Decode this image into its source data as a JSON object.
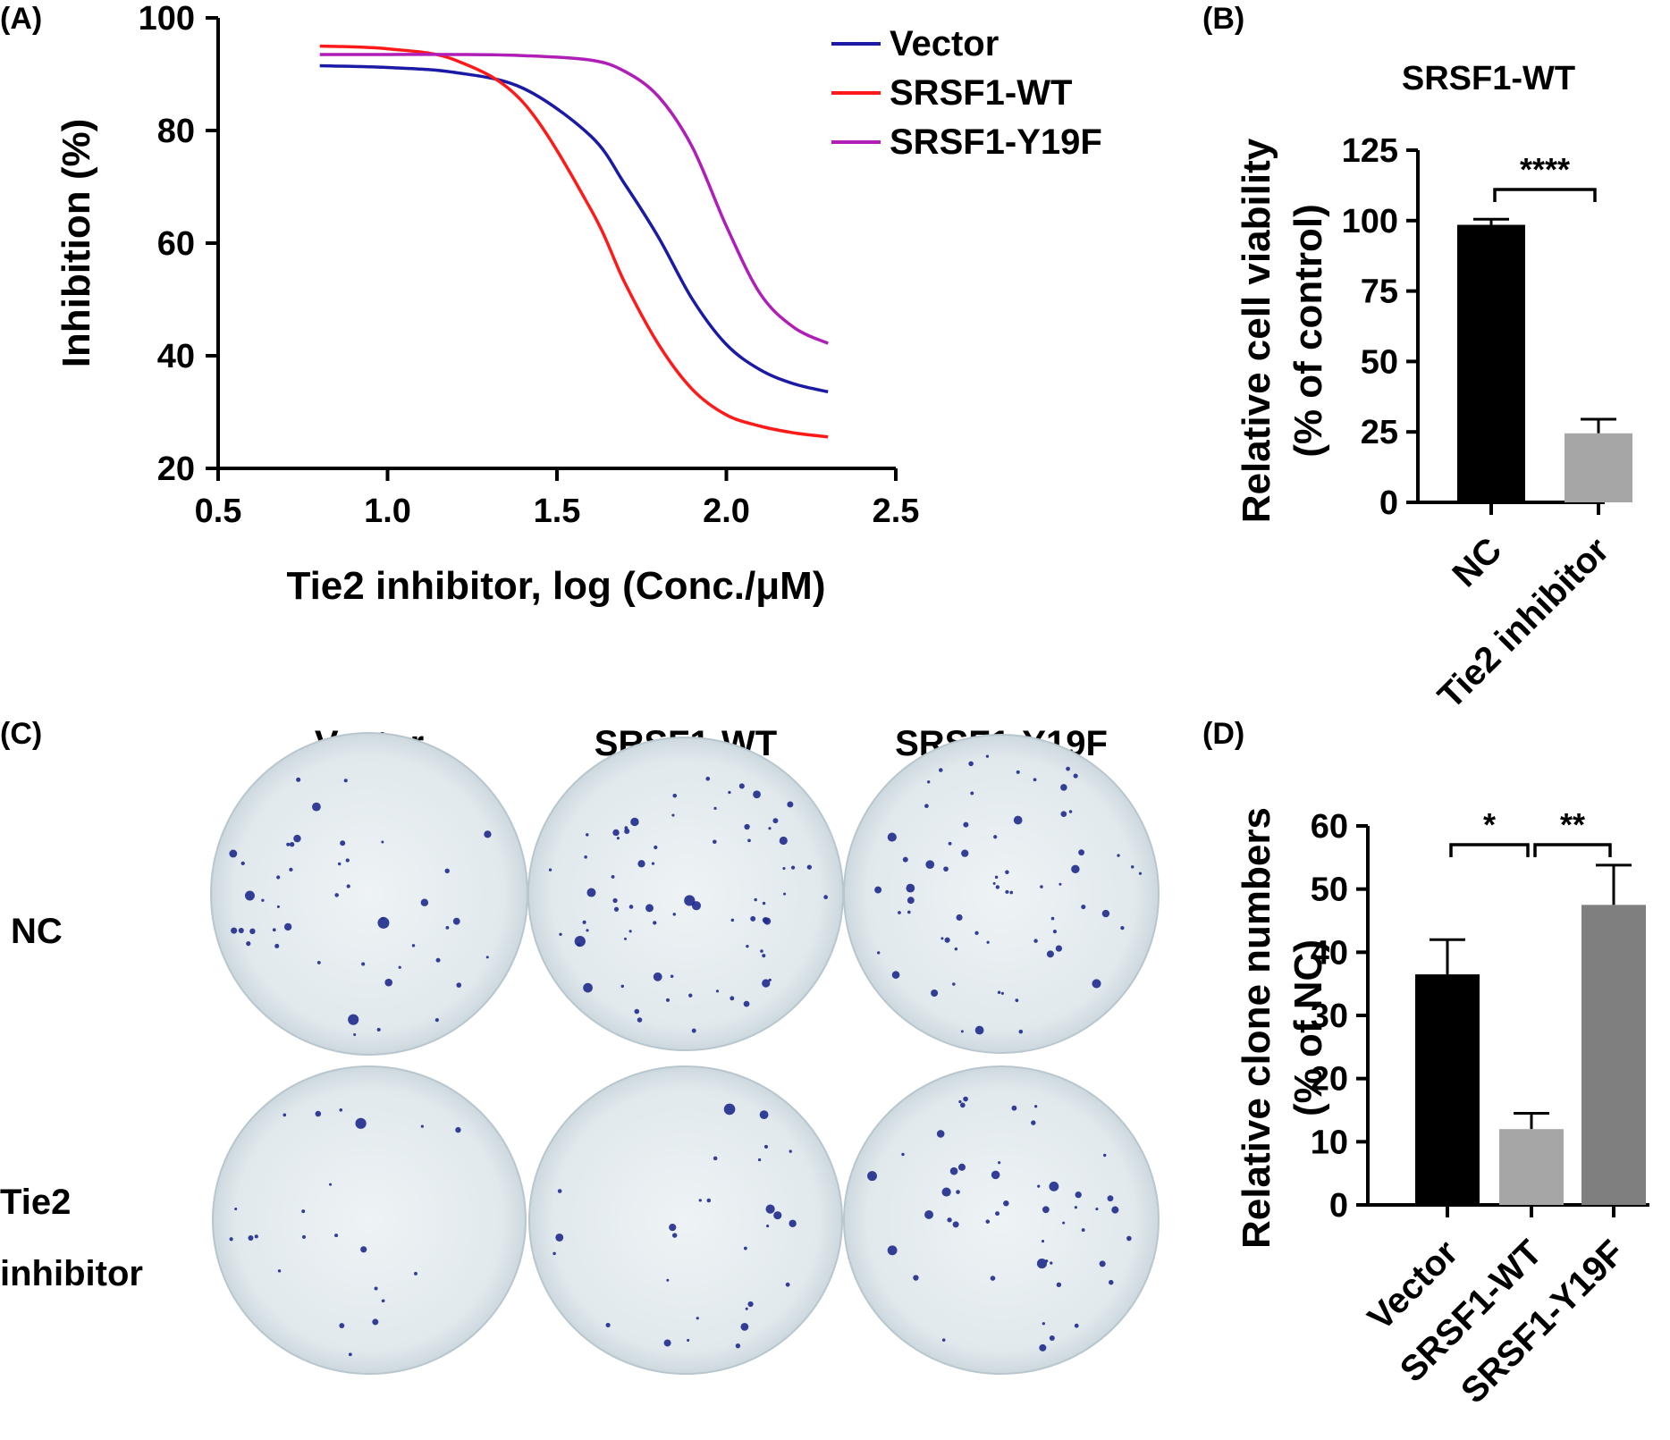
{
  "panels": {
    "a_label": "(A)",
    "b_label": "(B)",
    "c_label": "(C)",
    "d_label": "(D)"
  },
  "chart_data": [
    {
      "type": "line",
      "panel": "(A)",
      "xlabel": "Tie2 inhibitor, log (Conc./μM)",
      "ylabel": "Inhibition (%)",
      "xlim": [
        0.5,
        2.5
      ],
      "ylim": [
        20,
        100
      ],
      "xticks": [
        "0.5",
        "1.0",
        "1.5",
        "2.0",
        "2.5"
      ],
      "yticks": [
        "20",
        "40",
        "60",
        "80",
        "100"
      ],
      "legend_position": "top-right",
      "x": [
        0.8,
        1.0,
        1.2,
        1.4,
        1.6,
        1.7,
        1.8,
        1.9,
        2.0,
        2.1,
        2.2,
        2.3
      ],
      "series": [
        {
          "name": "Vector",
          "color": "#1a1aa6",
          "values": [
            91.5,
            91.2,
            90.3,
            87.5,
            79.0,
            70.5,
            61.0,
            50.0,
            42.0,
            37.5,
            35.0,
            33.6
          ]
        },
        {
          "name": "SRSF1-WT",
          "color": "#ff1a1a",
          "values": [
            95.0,
            94.5,
            92.5,
            85.0,
            66.0,
            53.0,
            42.0,
            34.0,
            29.5,
            27.5,
            26.3,
            25.6
          ]
        },
        {
          "name": "SRSF1-Y19F",
          "color": "#b01eb8",
          "values": [
            93.5,
            93.5,
            93.5,
            93.3,
            92.5,
            90.5,
            86.0,
            77.0,
            63.0,
            51.0,
            45.0,
            42.2
          ]
        }
      ]
    },
    {
      "type": "bar",
      "panel": "(B)",
      "title": "SRSF1-WT",
      "ylabel_line1": "Relative cell viability",
      "ylabel_line2": "(% of control)",
      "categories": [
        "NC",
        "Tie2 inhibitor"
      ],
      "values": [
        98.5,
        24.5
      ],
      "errors": [
        2.0,
        5.0
      ],
      "colors": [
        "#000000",
        "#a6a6a6"
      ],
      "ylim": [
        0,
        125
      ],
      "yticks": [
        "0",
        "25",
        "50",
        "75",
        "100",
        "125"
      ],
      "significance": [
        {
          "pair": [
            0,
            1
          ],
          "label": "****"
        }
      ]
    },
    {
      "type": "bar",
      "panel": "(D)",
      "ylabel_line1": "Relative clone numbers",
      "ylabel_line2": "(% of NC)",
      "categories": [
        "Vector",
        "SRSF1-WT",
        "SRSF1-Y19F"
      ],
      "values": [
        36.5,
        12.0,
        47.5
      ],
      "errors": [
        5.5,
        2.5,
        6.3
      ],
      "colors": [
        "#000000",
        "#a6a6a6",
        "#7f7f7f"
      ],
      "ylim": [
        0,
        60
      ],
      "yticks": [
        "0",
        "10",
        "20",
        "30",
        "40",
        "50",
        "60"
      ],
      "significance": [
        {
          "pair": [
            0,
            1
          ],
          "label": "*"
        },
        {
          "pair": [
            1,
            2
          ],
          "label": "**"
        }
      ]
    }
  ],
  "panel_c": {
    "columns": [
      "Vector",
      "SRSF1-WT",
      "SRSF1-Y19F"
    ],
    "rows": [
      "NC",
      "Tie2",
      "inhibitor"
    ],
    "dish_color": "#e4ecef",
    "colony_color": "#1f2a8c"
  }
}
